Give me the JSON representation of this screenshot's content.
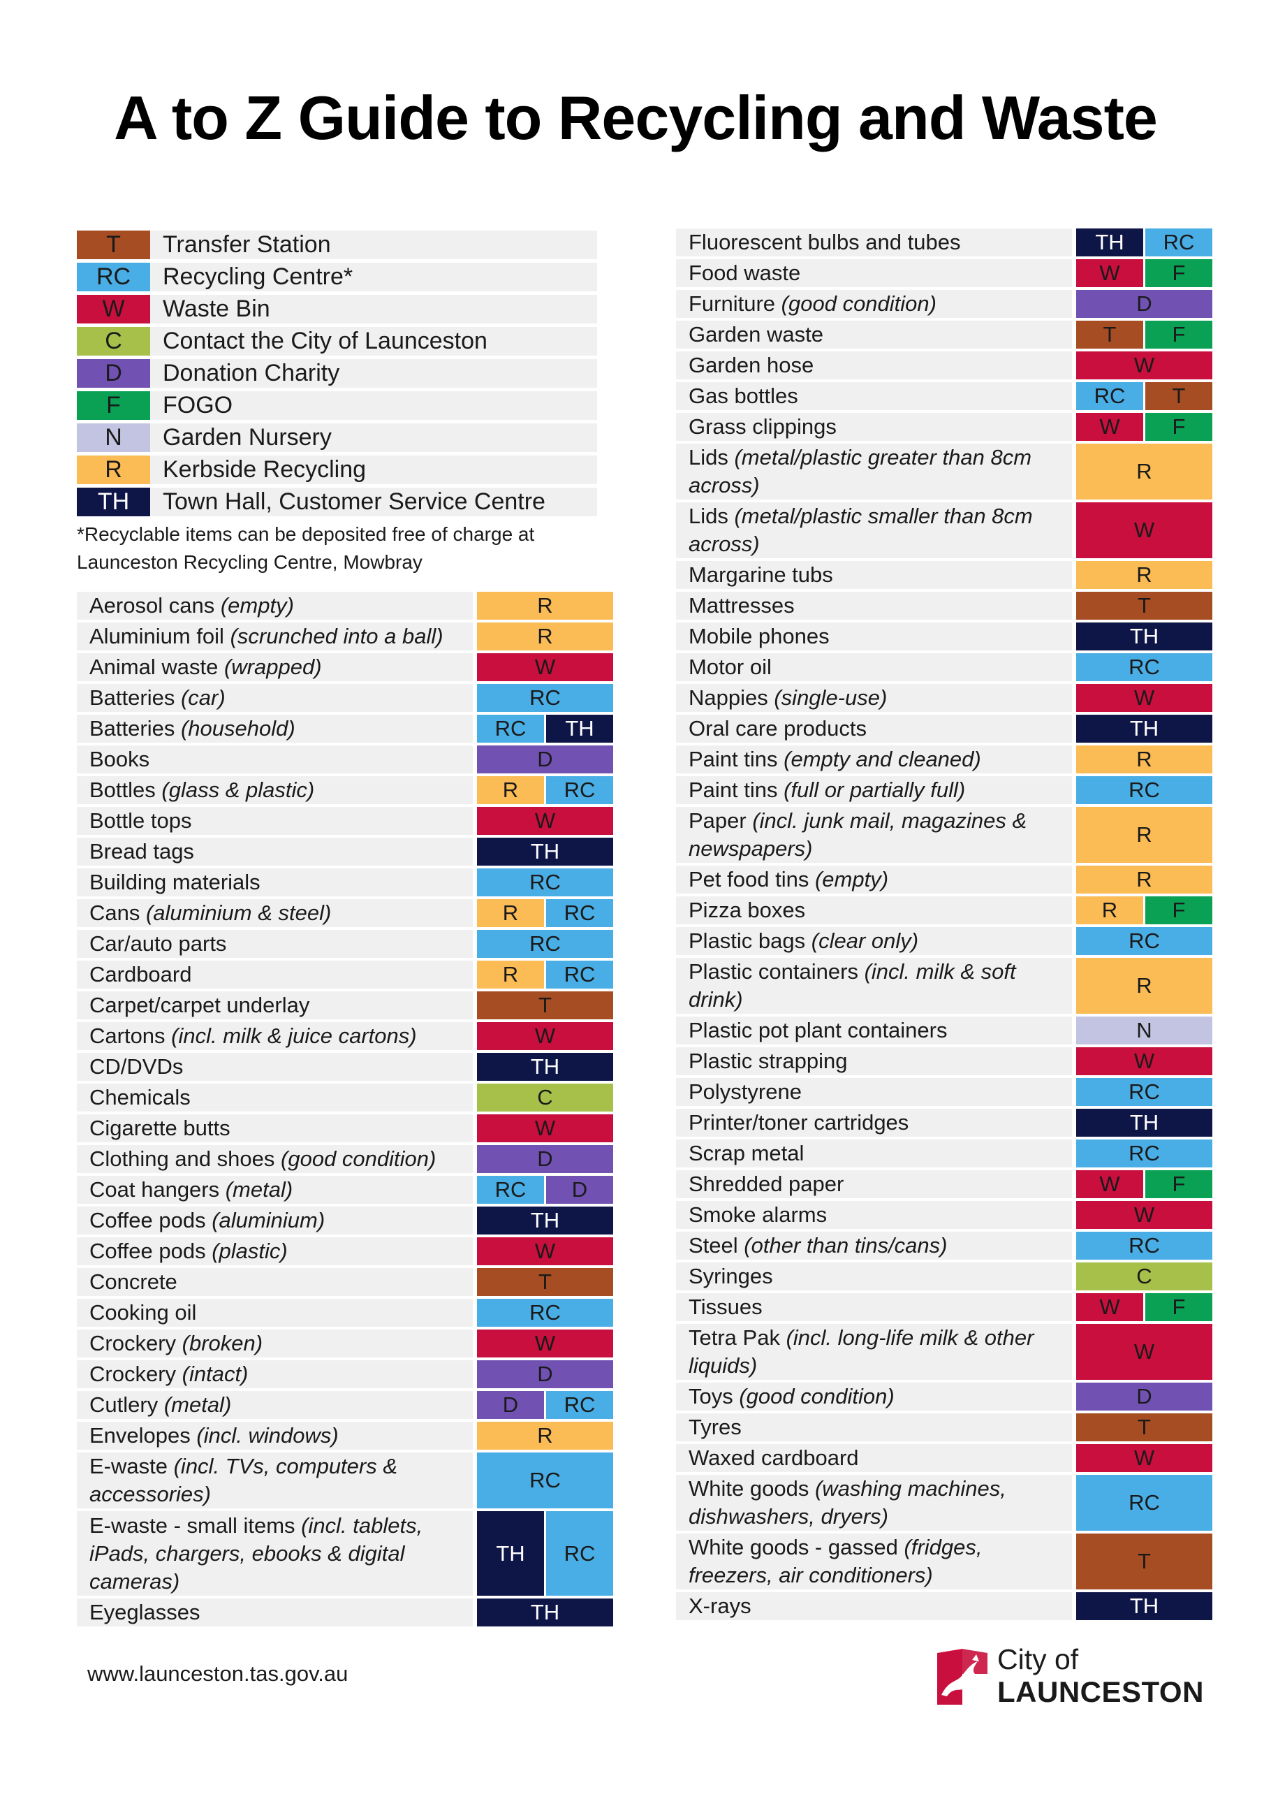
{
  "title": "A to Z Guide to Recycling and Waste",
  "colors": {
    "T": "#a64d23",
    "RC": "#4aaee6",
    "W": "#c90f3d",
    "C": "#a7c04a",
    "D": "#7152b3",
    "F": "#0aa154",
    "N": "#c3c3e2",
    "R": "#fbbb55",
    "TH": "#0e1547"
  },
  "legend": [
    {
      "code": "T",
      "label": "Transfer Station"
    },
    {
      "code": "RC",
      "label": "Recycling Centre*"
    },
    {
      "code": "W",
      "label": "Waste Bin"
    },
    {
      "code": "C",
      "label": "Contact the City of Launceston"
    },
    {
      "code": "D",
      "label": "Donation Charity"
    },
    {
      "code": "F",
      "label": "FOGO"
    },
    {
      "code": "N",
      "label": "Garden Nursery"
    },
    {
      "code": "R",
      "label": "Kerbside Recycling"
    },
    {
      "code": "TH",
      "label": "Town Hall, Customer Service Centre"
    }
  ],
  "legend_note_line1": "*Recyclable items can be deposited free of charge at",
  "legend_note_line2": "Launceston Recycling Centre, Mowbray",
  "items_left": [
    {
      "name": "Aerosol cans ",
      "note": "(empty)",
      "codes": [
        "R"
      ],
      "h": 1
    },
    {
      "name": "Aluminium foil ",
      "note": "(scrunched into a ball)",
      "codes": [
        "R"
      ],
      "h": 1
    },
    {
      "name": "Animal waste ",
      "note": "(wrapped)",
      "codes": [
        "W"
      ],
      "h": 1
    },
    {
      "name": "Batteries ",
      "note": "(car)",
      "codes": [
        "RC"
      ],
      "h": 1
    },
    {
      "name": "Batteries ",
      "note": "(household)",
      "codes": [
        "RC",
        "TH"
      ],
      "h": 1
    },
    {
      "name": "Books",
      "note": "",
      "codes": [
        "D"
      ],
      "h": 1
    },
    {
      "name": "Bottles ",
      "note": "(glass & plastic)",
      "codes": [
        "R",
        "RC"
      ],
      "h": 1
    },
    {
      "name": "Bottle tops",
      "note": "",
      "codes": [
        "W"
      ],
      "h": 1
    },
    {
      "name": "Bread tags",
      "note": "",
      "codes": [
        "TH"
      ],
      "h": 1
    },
    {
      "name": "Building materials",
      "note": "",
      "codes": [
        "RC"
      ],
      "h": 1
    },
    {
      "name": "Cans ",
      "note": "(aluminium & steel)",
      "codes": [
        "R",
        "RC"
      ],
      "h": 1
    },
    {
      "name": "Car/auto parts",
      "note": "",
      "codes": [
        "RC"
      ],
      "h": 1
    },
    {
      "name": "Cardboard",
      "note": "",
      "codes": [
        "R",
        "RC"
      ],
      "h": 1
    },
    {
      "name": "Carpet/carpet underlay",
      "note": "",
      "codes": [
        "T"
      ],
      "h": 1
    },
    {
      "name": "Cartons ",
      "note": "(incl. milk & juice cartons)",
      "codes": [
        "W"
      ],
      "h": 1
    },
    {
      "name": "CD/DVDs",
      "note": "",
      "codes": [
        "TH"
      ],
      "h": 1
    },
    {
      "name": "Chemicals",
      "note": "",
      "codes": [
        "C"
      ],
      "h": 1
    },
    {
      "name": "Cigarette butts",
      "note": "",
      "codes": [
        "W"
      ],
      "h": 1
    },
    {
      "name": "Clothing and shoes ",
      "note": "(good condition)",
      "codes": [
        "D"
      ],
      "h": 1
    },
    {
      "name": "Coat hangers ",
      "note": "(metal)",
      "codes": [
        "RC",
        "D"
      ],
      "h": 1
    },
    {
      "name": "Coffee pods ",
      "note": "(aluminium)",
      "codes": [
        "TH"
      ],
      "h": 1
    },
    {
      "name": "Coffee pods ",
      "note": "(plastic)",
      "codes": [
        "W"
      ],
      "h": 1
    },
    {
      "name": "Concrete",
      "note": "",
      "codes": [
        "T"
      ],
      "h": 1
    },
    {
      "name": "Cooking oil",
      "note": "",
      "codes": [
        "RC"
      ],
      "h": 1
    },
    {
      "name": "Crockery ",
      "note": "(broken)",
      "codes": [
        "W"
      ],
      "h": 1
    },
    {
      "name": "Crockery ",
      "note": "(intact)",
      "codes": [
        "D"
      ],
      "h": 1
    },
    {
      "name": "Cutlery ",
      "note": "(metal)",
      "codes": [
        "D",
        "RC"
      ],
      "h": 1
    },
    {
      "name": "Envelopes ",
      "note": "(incl. windows)",
      "codes": [
        "R"
      ],
      "h": 1
    },
    {
      "name": "E-waste ",
      "note": "(incl. TVs, computers & accessories)",
      "codes": [
        "RC"
      ],
      "h": 2
    },
    {
      "name": "E-waste - small items ",
      "note": "(incl. tablets, iPads, chargers, ebooks & digital cameras)",
      "codes": [
        "TH",
        "RC"
      ],
      "h": 3
    },
    {
      "name": "Eyeglasses",
      "note": "",
      "codes": [
        "TH"
      ],
      "h": 1
    }
  ],
  "items_right": [
    {
      "name": "Fluorescent bulbs and tubes",
      "note": "",
      "codes": [
        "TH",
        "RC"
      ],
      "h": 1
    },
    {
      "name": "Food waste",
      "note": "",
      "codes": [
        "W",
        "F"
      ],
      "h": 1
    },
    {
      "name": "Furniture ",
      "note": "(good condition)",
      "codes": [
        "D"
      ],
      "h": 1
    },
    {
      "name": "Garden waste",
      "note": "",
      "codes": [
        "T",
        "F"
      ],
      "h": 1
    },
    {
      "name": "Garden hose",
      "note": "",
      "codes": [
        "W"
      ],
      "h": 1
    },
    {
      "name": "Gas bottles",
      "note": "",
      "codes": [
        "RC",
        "T"
      ],
      "h": 1
    },
    {
      "name": "Grass clippings",
      "note": "",
      "codes": [
        "W",
        "F"
      ],
      "h": 1
    },
    {
      "name": "Lids ",
      "note": "(metal/plastic greater than 8cm across)",
      "codes": [
        "R"
      ],
      "h": 2
    },
    {
      "name": "Lids ",
      "note": "(metal/plastic smaller than 8cm across)",
      "codes": [
        "W"
      ],
      "h": 2
    },
    {
      "name": "Margarine tubs",
      "note": "",
      "codes": [
        "R"
      ],
      "h": 1
    },
    {
      "name": "Mattresses",
      "note": "",
      "codes": [
        "T"
      ],
      "h": 1
    },
    {
      "name": "Mobile phones",
      "note": "",
      "codes": [
        "TH"
      ],
      "h": 1
    },
    {
      "name": "Motor oil",
      "note": "",
      "codes": [
        "RC"
      ],
      "h": 1
    },
    {
      "name": "Nappies ",
      "note": "(single-use)",
      "codes": [
        "W"
      ],
      "h": 1
    },
    {
      "name": "Oral care products",
      "note": "",
      "codes": [
        "TH"
      ],
      "h": 1
    },
    {
      "name": "Paint tins ",
      "note": "(empty and cleaned)",
      "codes": [
        "R"
      ],
      "h": 1
    },
    {
      "name": "Paint tins ",
      "note": "(full or partially full)",
      "codes": [
        "RC"
      ],
      "h": 1
    },
    {
      "name": "Paper ",
      "note": "(incl. junk mail, magazines & newspapers)",
      "codes": [
        "R"
      ],
      "h": 2
    },
    {
      "name": "Pet food tins ",
      "note": "(empty)",
      "codes": [
        "R"
      ],
      "h": 1
    },
    {
      "name": "Pizza boxes",
      "note": "",
      "codes": [
        "R",
        "F"
      ],
      "h": 1
    },
    {
      "name": "Plastic bags ",
      "note": "(clear only)",
      "codes": [
        "RC"
      ],
      "h": 1
    },
    {
      "name": "Plastic containers ",
      "note": "(incl. milk & soft drink)",
      "codes": [
        "R"
      ],
      "h": 2
    },
    {
      "name": "Plastic pot plant containers",
      "note": "",
      "codes": [
        "N"
      ],
      "h": 1
    },
    {
      "name": "Plastic strapping",
      "note": "",
      "codes": [
        "W"
      ],
      "h": 1
    },
    {
      "name": "Polystyrene",
      "note": "",
      "codes": [
        "RC"
      ],
      "h": 1
    },
    {
      "name": "Printer/toner cartridges",
      "note": "",
      "codes": [
        "TH"
      ],
      "h": 1
    },
    {
      "name": "Scrap metal",
      "note": "",
      "codes": [
        "RC"
      ],
      "h": 1
    },
    {
      "name": "Shredded paper",
      "note": "",
      "codes": [
        "W",
        "F"
      ],
      "h": 1
    },
    {
      "name": "Smoke alarms",
      "note": "",
      "codes": [
        "W"
      ],
      "h": 1
    },
    {
      "name": "Steel ",
      "note": "(other than tins/cans)",
      "codes": [
        "RC"
      ],
      "h": 1
    },
    {
      "name": "Syringes",
      "note": "",
      "codes": [
        "C"
      ],
      "h": 1
    },
    {
      "name": "Tissues",
      "note": "",
      "codes": [
        "W",
        "F"
      ],
      "h": 1
    },
    {
      "name": "Tetra Pak ",
      "note": "(incl. long-life milk & other liquids)",
      "codes": [
        "W"
      ],
      "h": 2
    },
    {
      "name": "Toys ",
      "note": "(good condition)",
      "codes": [
        "D"
      ],
      "h": 1
    },
    {
      "name": "Tyres",
      "note": "",
      "codes": [
        "T"
      ],
      "h": 1
    },
    {
      "name": "Waxed cardboard",
      "note": "",
      "codes": [
        "W"
      ],
      "h": 1
    },
    {
      "name": "White goods ",
      "note": "(washing machines, dishwashers, dryers)",
      "codes": [
        "RC"
      ],
      "h": 2
    },
    {
      "name": "White goods - gassed ",
      "note": "(fridges, freezers, air conditioners)",
      "codes": [
        "T"
      ],
      "h": 2
    },
    {
      "name": "X-rays",
      "note": "",
      "codes": [
        "TH"
      ],
      "h": 1
    }
  ],
  "footer": {
    "website": "www.launceston.tas.gov.au",
    "logo_line1": "City of",
    "logo_line2": "LAUNCESTON",
    "logo_icon": "launceston-cat-crest-icon"
  }
}
